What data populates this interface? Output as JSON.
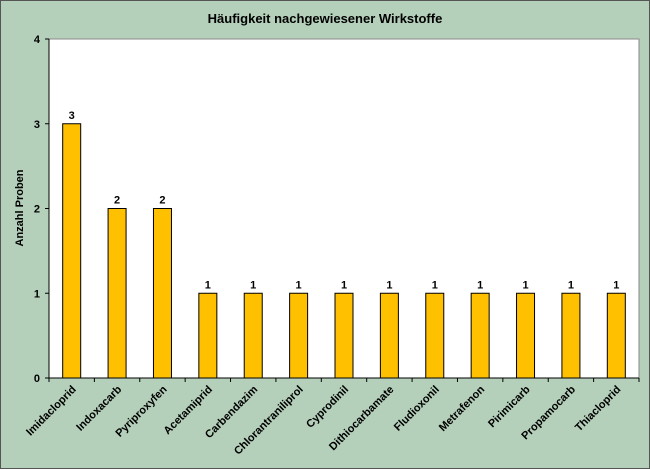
{
  "chart_data": {
    "type": "bar",
    "title": "Häufigkeit nachgewiesener Wirkstoffe",
    "xlabel": "",
    "ylabel": "Anzahl Proben",
    "ylim": [
      0,
      4
    ],
    "yticks": [
      "0",
      "1",
      "2",
      "3",
      "4"
    ],
    "categories": [
      "Imidacloprid",
      "Indoxacarb",
      "Pyriproxyfen",
      "Acetamiprid",
      "Carbendazim",
      "Chlorantraniliprol",
      "Cyprodinil",
      "Dithiocarbamate",
      "Fludioxonil",
      "Metrafenon",
      "Pirimicarb",
      "Propamocarb",
      "Thiacloprid"
    ],
    "values": [
      3,
      2,
      2,
      1,
      1,
      1,
      1,
      1,
      1,
      1,
      1,
      1,
      1
    ],
    "data_labels": [
      "3",
      "2",
      "2",
      "1",
      "1",
      "1",
      "1",
      "1",
      "1",
      "1",
      "1",
      "1",
      "1"
    ],
    "grid": false,
    "legend": "none",
    "colors": {
      "background": "#b4d0ba",
      "plot_area": "#ffffff",
      "bar_fill": "#ffc000",
      "bar_stroke": "#000000"
    }
  }
}
